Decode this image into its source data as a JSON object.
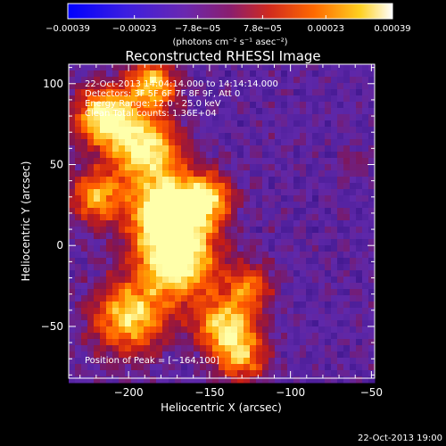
{
  "chart_data": {
    "type": "heatmap",
    "title": "Reconstructed RHESSI Image",
    "xlabel": "Heliocentric X (arcsec)",
    "ylabel": "Heliocentric Y (arcsec)",
    "xlim": [
      -237,
      -48
    ],
    "ylim": [
      -82,
      112
    ],
    "xticks": [
      -200,
      -150,
      -100,
      -50
    ],
    "xtick_labels": [
      "−200",
      "−150",
      "−100",
      "−50"
    ],
    "yticks": [
      -50,
      0,
      50,
      100
    ],
    "ytick_labels": [
      "−50",
      "0",
      "50",
      "100"
    ],
    "colorbar": {
      "range": [
        -0.00039,
        0.00039
      ],
      "ticks": [
        -0.00039,
        -0.00023,
        -7.8e-05,
        7.8e-05,
        0.00023,
        0.00039
      ],
      "tick_labels": [
        "−0.00039",
        "−0.00023",
        "−7.8e−05",
        "7.8e−05",
        "0.00023",
        "0.00039"
      ],
      "unit_label": "(photons cm⁻² s⁻¹ asec⁻²)",
      "colors": [
        "#0000ff",
        "#5a1cc8",
        "#7a2a9a",
        "#c82a2a",
        "#ff5a00",
        "#ffb000",
        "#ffff80",
        "#ffffff"
      ]
    },
    "annotations": [
      "22-Oct-2013 14:04:14.000 to 14:14:14.000",
      "Detectors: 3F 5F 6F 7F 8F 9F, Att 0",
      "Energy Range: 12.0 - 25.0 keV",
      "Clean    Total counts: 1.36E+04"
    ],
    "peak_label": "Position of Peak = [−164,100]",
    "peak": [
      -164,
      100
    ]
  },
  "footer_timestamp": "22-Oct-2013 19:00"
}
